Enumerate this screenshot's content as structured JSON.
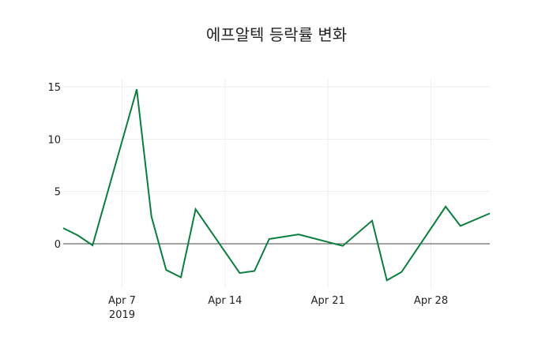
{
  "chart_data": {
    "type": "line",
    "title": "에프알텍 등락률 변화",
    "xlabel": "",
    "ylabel": "",
    "x": [
      "2019-04-03",
      "2019-04-04",
      "2019-04-05",
      "2019-04-08",
      "2019-04-09",
      "2019-04-10",
      "2019-04-11",
      "2019-04-12",
      "2019-04-15",
      "2019-04-16",
      "2019-04-17",
      "2019-04-19",
      "2019-04-22",
      "2019-04-24",
      "2019-04-25",
      "2019-04-26",
      "2019-04-29",
      "2019-04-30",
      "2019-05-02"
    ],
    "series": [
      {
        "name": "등락률",
        "color": "#0b7e3e",
        "values": [
          1.5,
          0.8,
          -0.15,
          14.75,
          2.6,
          -2.5,
          -3.2,
          3.3,
          -2.8,
          -2.6,
          0.45,
          0.9,
          -0.2,
          2.2,
          -3.5,
          -2.7,
          3.55,
          1.7,
          2.9
        ]
      }
    ],
    "x_ticks": [
      {
        "date": "2019-04-07",
        "label": "Apr 7",
        "sublabel": "2019"
      },
      {
        "date": "2019-04-14",
        "label": "Apr 14"
      },
      {
        "date": "2019-04-21",
        "label": "Apr 21"
      },
      {
        "date": "2019-04-28",
        "label": "Apr 28"
      }
    ],
    "y_ticks": [
      0,
      5,
      10,
      15
    ],
    "xlim": [
      "2019-04-03",
      "2019-05-02"
    ],
    "ylim": [
      -4.2,
      15.6
    ],
    "grid": true,
    "legend": "none"
  }
}
